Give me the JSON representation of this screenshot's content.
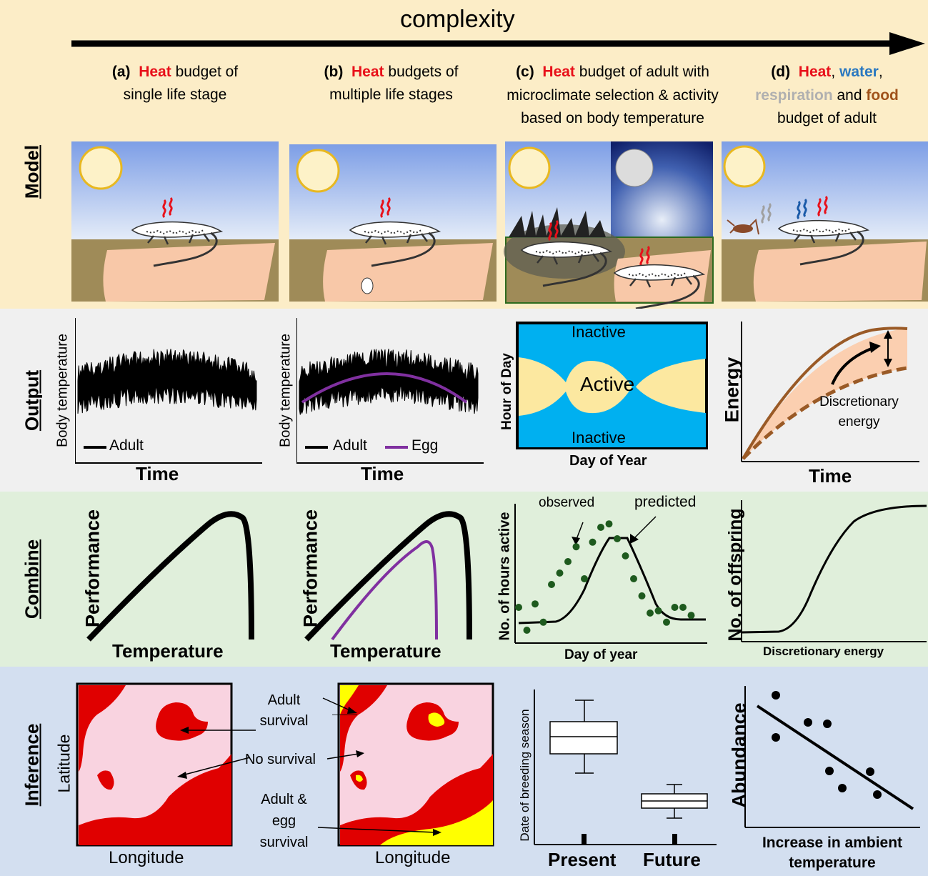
{
  "top_arrow": {
    "label": "complexity"
  },
  "rows": {
    "model": "Model",
    "output": "Output",
    "combine": "Combine",
    "inference": "Inference"
  },
  "headers": {
    "a": {
      "letter": "(a)",
      "heat": "Heat",
      "line1_rest": "budget of",
      "line2": "single life stage"
    },
    "b": {
      "letter": "(b)",
      "heat": "Heat",
      "line1_rest": "budgets of",
      "line2": "multiple life stages"
    },
    "c": {
      "letter": "(c)",
      "heat": "Heat",
      "line1_rest": "budget of adult with",
      "line2": "microclimate selection & activity",
      "line3": "based on body temperature"
    },
    "d": {
      "letter": "(d)",
      "heat": "Heat",
      "comma1": ",",
      "water": "water",
      "comma2": ",",
      "respiration": "respiration",
      "and": "and",
      "food": "food",
      "line3": "budget of adult"
    }
  },
  "output": {
    "a": {
      "ylabel": "Body temperature",
      "xlabel": "Time",
      "legend": [
        "Adult"
      ]
    },
    "b": {
      "ylabel": "Body temperature",
      "xlabel": "Time",
      "legend": [
        "Adult",
        "Egg"
      ]
    },
    "c": {
      "ylabel": "Hour of Day",
      "xlabel": "Day of Year",
      "top": "Inactive",
      "mid": "Active",
      "bottom": "Inactive"
    },
    "d": {
      "ylabel": "Energy",
      "xlabel": "Time",
      "annotation_1": "Discretionary",
      "annotation_2": "energy"
    }
  },
  "combine": {
    "a": {
      "ylabel": "Performance",
      "xlabel": "Temperature"
    },
    "b": {
      "ylabel": "Performance",
      "xlabel": "Temperature"
    },
    "c": {
      "ylabel": "No. of hours active",
      "xlabel": "Day of year",
      "observed": "observed",
      "predicted": "predicted",
      "chart_data": {
        "type": "scatter",
        "note": "observed points vs predicted line (values unlabeled)",
        "observed": [
          [
            1,
            0.25
          ],
          [
            2,
            0.05
          ],
          [
            3,
            0.28
          ],
          [
            4,
            0.12
          ],
          [
            5,
            0.45
          ],
          [
            6,
            0.55
          ],
          [
            7,
            0.65
          ],
          [
            8,
            0.78
          ],
          [
            9,
            0.5
          ],
          [
            10,
            0.82
          ],
          [
            11,
            0.95
          ],
          [
            12,
            0.98
          ],
          [
            13,
            0.85
          ],
          [
            14,
            0.7
          ],
          [
            15,
            0.5
          ],
          [
            16,
            0.35
          ],
          [
            17,
            0.2
          ],
          [
            18,
            0.22
          ],
          [
            19,
            0.12
          ],
          [
            20,
            0.25
          ],
          [
            21,
            0.25
          ],
          [
            22,
            0.18
          ]
        ]
      }
    },
    "d": {
      "ylabel": "No. of offspring",
      "xlabel": "Discretionary energy"
    }
  },
  "inference": {
    "a": {
      "ylabel": "Latitude",
      "xlabel": "Longitude"
    },
    "labels": {
      "adult_1": "Adult",
      "adult_2": "survival",
      "none": "No survival",
      "egg_1": "Adult &",
      "egg_2": "egg",
      "egg_3": "survival"
    },
    "b": {
      "xlabel": "Longitude"
    },
    "c": {
      "ylabel": "Date of breeding season",
      "x1": "Present",
      "x2": "Future"
    },
    "d": {
      "ylabel": "Abundance",
      "xlabel_1": "Increase in ambient",
      "xlabel_2": "temperature"
    }
  },
  "colors": {
    "model_bg": "#fcedc7",
    "output_bg": "#f0f0f0",
    "combine_bg": "#e0efdb",
    "inference_bg": "#d3dff0",
    "heat": "#e8101a",
    "water": "#2a78c0",
    "respiration": "#b0b0b0",
    "food": "#a0521a",
    "egg_curve": "#8030a0",
    "active": "#fce8a0",
    "inactive": "#00b0f0",
    "survival": "#e00000",
    "egg_survival": "#ffff00"
  }
}
